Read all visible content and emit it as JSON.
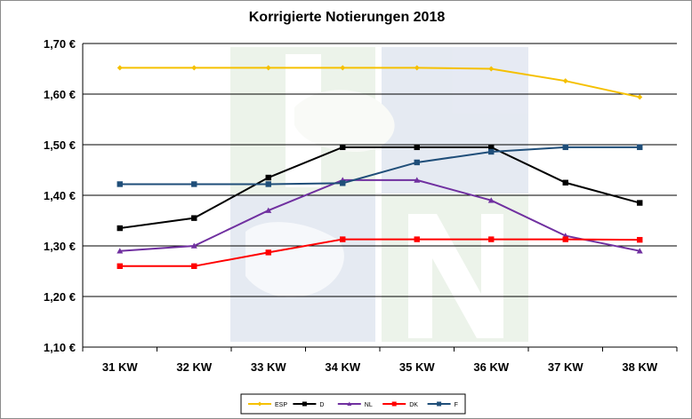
{
  "chart_data": {
    "type": "line",
    "title": "Korrigierte Notierungen 2018",
    "categories": [
      "31 KW",
      "32 KW",
      "33 KW",
      "34 KW",
      "35 KW",
      "36 KW",
      "37 KW",
      "38 KW"
    ],
    "ylim": [
      1.1,
      1.7
    ],
    "yticks": [
      1.1,
      1.2,
      1.3,
      1.4,
      1.5,
      1.6,
      1.7
    ],
    "ytick_labels": [
      "1,10 €",
      "1,20 €",
      "1,30 €",
      "1,40 €",
      "1,50 €",
      "1,60 €",
      "1,70 €"
    ],
    "grid": true,
    "legend_position": "bottom",
    "series": [
      {
        "name": "ESP",
        "color": "#f5c000",
        "marker": "diamond",
        "values": [
          1.652,
          1.652,
          1.652,
          1.652,
          1.652,
          1.65,
          1.626,
          1.594
        ]
      },
      {
        "name": "D",
        "color": "#000000",
        "marker": "square",
        "values": [
          1.335,
          1.355,
          1.435,
          1.495,
          1.495,
          1.495,
          1.425,
          1.385
        ]
      },
      {
        "name": "NL",
        "color": "#7030a0",
        "marker": "triangle",
        "values": [
          1.29,
          1.3,
          1.37,
          1.43,
          1.43,
          1.39,
          1.32,
          1.29
        ]
      },
      {
        "name": "DK",
        "color": "#ff0000",
        "marker": "square",
        "values": [
          1.26,
          1.26,
          1.287,
          1.313,
          1.313,
          1.313,
          1.313,
          1.312
        ]
      },
      {
        "name": "F",
        "color": "#1f4e79",
        "marker": "square",
        "values": [
          1.422,
          1.422,
          1.422,
          1.424,
          1.465,
          1.486,
          1.495,
          1.495
        ]
      }
    ]
  }
}
